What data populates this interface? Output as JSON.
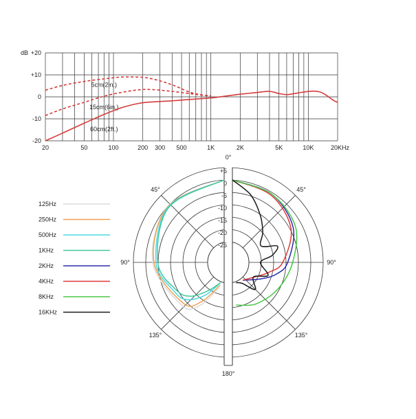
{
  "chart_data": [
    {
      "type": "line",
      "title": "",
      "xlabel": "",
      "ylabel": "",
      "x_scale": "log",
      "xlim": [
        20,
        20000
      ],
      "ylim": [
        -20,
        20
      ],
      "grid": true,
      "y_axis": {
        "unit_label": "dB",
        "ticks": [
          {
            "value": 20,
            "label": "+20"
          },
          {
            "value": 10,
            "label": "+10"
          },
          {
            "value": 0,
            "label": "0"
          },
          {
            "value": -10,
            "label": "-10"
          },
          {
            "value": -20,
            "label": "-20"
          }
        ]
      },
      "x_axis": {
        "ticks": [
          {
            "value": 20,
            "label": "20"
          },
          {
            "value": 50,
            "label": "50"
          },
          {
            "value": 100,
            "label": "100"
          },
          {
            "value": 200,
            "label": "200"
          },
          {
            "value": 300,
            "label": "300"
          },
          {
            "value": 500,
            "label": "500"
          },
          {
            "value": 1000,
            "label": "1K"
          },
          {
            "value": 2000,
            "label": "2K"
          },
          {
            "value": 5000,
            "label": "5K"
          },
          {
            "value": 10000,
            "label": "10K"
          },
          {
            "value": 20000,
            "label": "20KHz"
          }
        ]
      },
      "colors": {
        "curve": "#d63a3a",
        "grid": "#333333"
      },
      "series": [
        {
          "name": "5cm(2in.)",
          "style": "dashed",
          "label_at": {
            "x": 80,
            "y": 4.6
          },
          "points": [
            [
              20,
              3
            ],
            [
              30,
              5.2
            ],
            [
              50,
              7
            ],
            [
              80,
              8.2
            ],
            [
              120,
              9
            ],
            [
              180,
              9
            ],
            [
              250,
              8.2
            ],
            [
              400,
              5.5
            ],
            [
              600,
              2.2
            ],
            [
              800,
              0.9
            ],
            [
              1000,
              0.5
            ]
          ]
        },
        {
          "name": "15cm(6in.)",
          "style": "dashed",
          "label_at": {
            "x": 80,
            "y": -5.6
          },
          "points": [
            [
              20,
              -8.5
            ],
            [
              30,
              -5.5
            ],
            [
              50,
              -2.5
            ],
            [
              80,
              0.3
            ],
            [
              120,
              2
            ],
            [
              180,
              3.2
            ],
            [
              250,
              3.3
            ],
            [
              400,
              2.5
            ],
            [
              600,
              1.5
            ],
            [
              800,
              0.8
            ],
            [
              1000,
              0.5
            ]
          ]
        },
        {
          "name": "60cm(2ft.)",
          "style": "solid",
          "label_at": {
            "x": 80,
            "y": -15.6
          },
          "points": [
            [
              20,
              -20
            ],
            [
              30,
              -16.5
            ],
            [
              50,
              -12
            ],
            [
              80,
              -8
            ],
            [
              120,
              -5
            ],
            [
              180,
              -3
            ],
            [
              250,
              -2.3
            ],
            [
              400,
              -1.8
            ],
            [
              600,
              -1.2
            ],
            [
              1000,
              -0.5
            ],
            [
              1500,
              0.5
            ],
            [
              2000,
              1.2
            ],
            [
              3000,
              2
            ],
            [
              4000,
              2.5
            ],
            [
              5000,
              1.5
            ],
            [
              6000,
              1
            ],
            [
              7000,
              1.4
            ],
            [
              9000,
              2.2
            ],
            [
              11000,
              2.6
            ],
            [
              13000,
              2.3
            ],
            [
              15000,
              1
            ],
            [
              18000,
              -1.5
            ],
            [
              20000,
              -2.5
            ]
          ]
        }
      ]
    },
    {
      "type": "polar",
      "title": "",
      "unit": "dB",
      "rlim": [
        -25,
        5
      ],
      "rings": [
        {
          "value": 5,
          "label": "+5"
        },
        {
          "value": 0,
          "label": "0"
        },
        {
          "value": -5,
          "label": "-5"
        },
        {
          "value": -10,
          "label": "-10"
        },
        {
          "value": -15,
          "label": "-15"
        },
        {
          "value": -20,
          "label": "-20"
        },
        {
          "value": -25,
          "label": "-25"
        }
      ],
      "angle_labels": [
        {
          "angle": 0,
          "label": "0°"
        },
        {
          "angle": 45,
          "label": "45°"
        },
        {
          "angle": -45,
          "label": "45°"
        },
        {
          "angle": 90,
          "label": "90°"
        },
        {
          "angle": -90,
          "label": "90°"
        },
        {
          "angle": 135,
          "label": "135°"
        },
        {
          "angle": -135,
          "label": "135°"
        },
        {
          "angle": 180,
          "label": "180°"
        }
      ],
      "legend_placement": "left",
      "series": [
        {
          "name": "125Hz",
          "color": "#dcdcdc",
          "side": "left",
          "points": [
            [
              0,
              0
            ],
            [
              45,
              -1.2
            ],
            [
              90,
              -4.5
            ],
            [
              135,
              -9
            ],
            [
              150,
              -13
            ],
            [
              170,
              -23
            ]
          ]
        },
        {
          "name": "250Hz",
          "color": "#f0a050",
          "side": "left",
          "points": [
            [
              0,
              0
            ],
            [
              45,
              -1.3
            ],
            [
              90,
              -5
            ],
            [
              135,
              -10
            ],
            [
              150,
              -15
            ],
            [
              170,
              -24
            ]
          ]
        },
        {
          "name": "500Hz",
          "color": "#48d8e0",
          "side": "left",
          "points": [
            [
              0,
              0
            ],
            [
              45,
              -1.5
            ],
            [
              90,
              -5.8
            ],
            [
              120,
              -10
            ],
            [
              135,
              -12
            ],
            [
              150,
              -18
            ],
            [
              170,
              -25
            ]
          ]
        },
        {
          "name": "1KHz",
          "color": "#40c8a0",
          "side": "left",
          "points": [
            [
              0,
              0
            ],
            [
              45,
              -1.8
            ],
            [
              90,
              -6.5
            ],
            [
              120,
              -11
            ],
            [
              135,
              -14
            ],
            [
              150,
              -20
            ],
            [
              170,
              -25
            ]
          ]
        },
        {
          "name": "2KHz",
          "color": "#2c2caa",
          "side": "right",
          "points": [
            [
              0,
              0
            ],
            [
              30,
              -1.5
            ],
            [
              60,
              -5
            ],
            [
              90,
              -11
            ],
            [
              105,
              -15
            ],
            [
              120,
              -20
            ],
            [
              150,
              -25
            ]
          ]
        },
        {
          "name": "4KHz",
          "color": "#e03838",
          "side": "right",
          "points": [
            [
              0,
              0
            ],
            [
              30,
              -2
            ],
            [
              60,
              -6
            ],
            [
              90,
              -13
            ],
            [
              105,
              -18
            ],
            [
              120,
              -22
            ],
            [
              150,
              -25
            ]
          ]
        },
        {
          "name": "8KHz",
          "color": "#48c848",
          "side": "right",
          "points": [
            [
              0,
              0
            ],
            [
              30,
              -1.5
            ],
            [
              60,
              -4
            ],
            [
              90,
              -9
            ],
            [
              120,
              -12
            ],
            [
              150,
              -14
            ],
            [
              175,
              -16
            ]
          ]
        },
        {
          "name": "16KHz",
          "color": "#1a1a1a",
          "side": "right",
          "points": [
            [
              0,
              0
            ],
            [
              15,
              -5
            ],
            [
              30,
              -11
            ],
            [
              45,
              -16
            ],
            [
              60,
              -20
            ],
            [
              70,
              -14
            ],
            [
              80,
              -17
            ],
            [
              90,
              -22
            ],
            [
              110,
              -18
            ],
            [
              125,
              -23
            ],
            [
              140,
              -19
            ],
            [
              155,
              -24
            ],
            [
              170,
              -25
            ]
          ]
        }
      ]
    }
  ]
}
